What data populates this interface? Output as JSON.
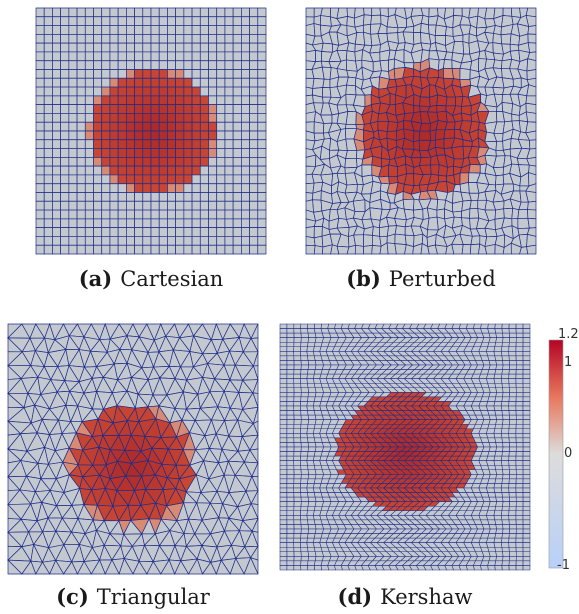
{
  "panels": [
    {
      "id": "a",
      "tag": "(a)",
      "label": "Cartesian",
      "mesh": "cartesian"
    },
    {
      "id": "b",
      "tag": "(b)",
      "label": "Perturbed",
      "mesh": "perturbed"
    },
    {
      "id": "c",
      "tag": "(c)",
      "label": "Triangular",
      "mesh": "triangular"
    },
    {
      "id": "d",
      "tag": "(d)",
      "label": "Kershaw",
      "mesh": "kershaw"
    }
  ],
  "colorbar": {
    "labels": [
      "1.2",
      "1",
      "0",
      "-1"
    ],
    "colors": {
      "high": "#b40426",
      "mid": "#dddcdc",
      "low": "#b8d0f9"
    }
  },
  "colors": {
    "background_field": "#c4c9cf",
    "blob": "#c0392b",
    "mesh_line": "#1f2d8a"
  }
}
